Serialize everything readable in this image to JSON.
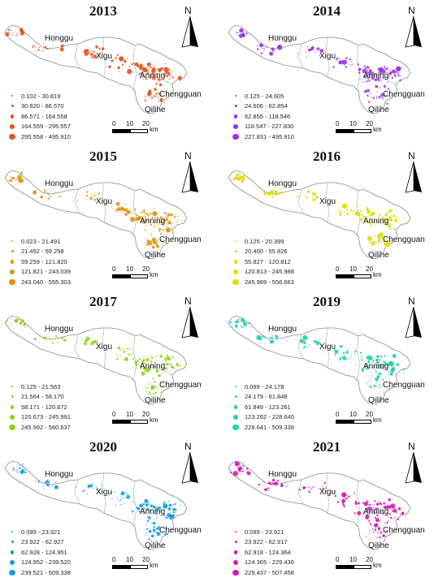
{
  "panels": [
    {
      "year": "2013",
      "color": "#e4541c",
      "legend": [
        "0.102 - 30.819",
        "30.820 - 86.570",
        "86.571 - 164.558",
        "164.559 - 295.557",
        "295.558 - 495.910"
      ]
    },
    {
      "year": "2014",
      "color": "#9b30e6",
      "legend": [
        "0.125 - 24.605",
        "24.606 - 62.854",
        "62.855 - 118.546",
        "118.547 - 227.830",
        "227.831 - 495.910"
      ]
    },
    {
      "year": "2015",
      "color": "#e0930f",
      "legend": [
        "0.023 - 21.491",
        "21.492 - 59.258",
        "59.259 - 121.820",
        "121.821 - 243.039",
        "243.040 - 555.303"
      ]
    },
    {
      "year": "2016",
      "color": "#dede00",
      "legend": [
        "0.125 - 20.399",
        "20.400 - 55.826",
        "55.827 - 120.812",
        "120.813 - 245.988",
        "245.989 - 556.663"
      ]
    },
    {
      "year": "2017",
      "color": "#8ed21c",
      "legend": [
        "0.125 - 21.563",
        "21.564 - 58.170",
        "58.171 - 120.672",
        "120.673 - 245.991",
        "245.992 - 560.637"
      ]
    },
    {
      "year": "2019",
      "color": "#22d1a6",
      "legend": [
        "0.099 - 24.178",
        "24.179 - 61.848",
        "61.849 - 123.261",
        "123.262 - 228.640",
        "228.641 - 509.338"
      ]
    },
    {
      "year": "2020",
      "color": "#1a9ddb",
      "legend": [
        "0.099 - 23.921",
        "23.922 - 62.927",
        "62.928 - 124.951",
        "124.952 - 239.520",
        "239.521 - 509.338"
      ]
    },
    {
      "year": "2021",
      "color": "#d21ab3",
      "legend": [
        "0.099 - 23.921",
        "23.922 - 62.917",
        "62.918 - 124.364",
        "124.365 - 229.436",
        "229.437 - 507.458"
      ]
    }
  ],
  "places": [
    "Honggu",
    "Xigu",
    "Anning",
    "Chengguan",
    "Qilihe"
  ],
  "north_label": "N",
  "scale": {
    "ticks": [
      "0",
      "10",
      "20"
    ],
    "unit": "km"
  }
}
